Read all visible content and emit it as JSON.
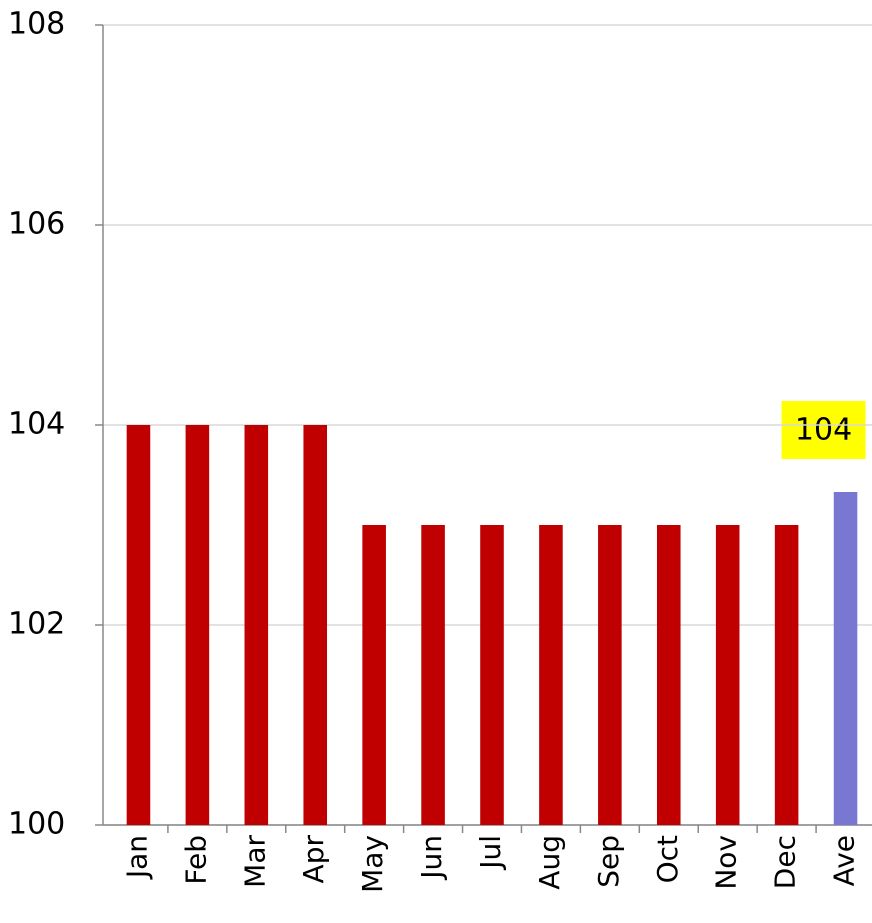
{
  "chart_data": {
    "type": "bar",
    "categories": [
      "Jan",
      "Feb",
      "Mar",
      "Apr",
      "May",
      "Jun",
      "Jul",
      "Aug",
      "Sep",
      "Oct",
      "Nov",
      "Dec",
      "Ave"
    ],
    "values": [
      104,
      104,
      104,
      104,
      103,
      103,
      103,
      103,
      103,
      103,
      103,
      103,
      103.33
    ],
    "colors": [
      "#c00000",
      "#c00000",
      "#c00000",
      "#c00000",
      "#c00000",
      "#c00000",
      "#c00000",
      "#c00000",
      "#c00000",
      "#c00000",
      "#c00000",
      "#c00000",
      "#7878d2"
    ],
    "annotation": "104",
    "ylim": [
      100,
      108
    ],
    "yticks": [
      100,
      102,
      104,
      106,
      108
    ],
    "grid": true
  }
}
